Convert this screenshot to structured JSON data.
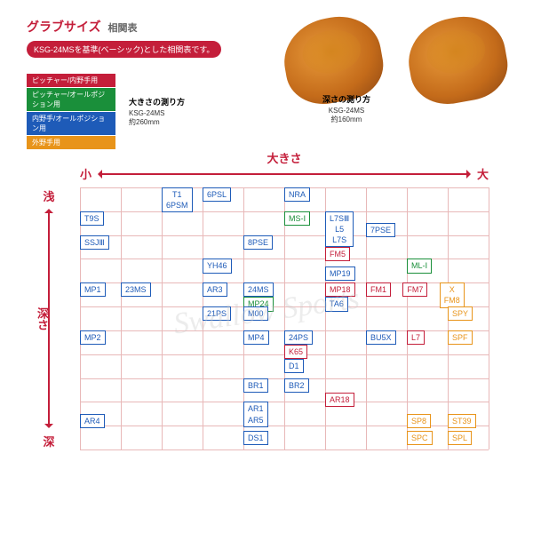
{
  "title_main": "グラブサイズ",
  "title_sub": "相関表",
  "pill": "KSG-24MSを基準(ベーシック)とした相関表です。",
  "legend": [
    {
      "label": "ピッチャー/内野手用",
      "bg": "#c41e3a"
    },
    {
      "label": "ピッチャー/オールポジション用",
      "bg": "#1a8f3a"
    },
    {
      "label": "内野手/オールポジション用",
      "bg": "#1e5bb8"
    },
    {
      "label": "外野手用",
      "bg": "#e8941a"
    }
  ],
  "glove_captions": [
    {
      "title": "大きさの測り方",
      "model": "KSG-24MS",
      "size": "約260mm"
    },
    {
      "title": "深さの測り方",
      "model": "KSG-24MS",
      "size": "約160mm"
    }
  ],
  "axis_x": {
    "left": "小",
    "mid": "大きさ",
    "right": "大"
  },
  "axis_y": {
    "top": "浅",
    "mid": "深さ",
    "bottom": "深"
  },
  "colors": {
    "pitcher": "#c41e3a",
    "pitcher_all": "#1a8f3a",
    "infield": "#1e5bb8",
    "outfield": "#e8941a"
  },
  "grid_cols": 10,
  "grid_rows": 11,
  "cells": [
    {
      "c": 2,
      "r": 0,
      "lines": [
        "T1",
        "6PSM"
      ],
      "cat": "infield"
    },
    {
      "c": 3,
      "r": 0,
      "lines": [
        "6PSL"
      ],
      "cat": "infield"
    },
    {
      "c": 5,
      "r": 0,
      "lines": [
        "NRA"
      ],
      "cat": "infield"
    },
    {
      "c": 0,
      "r": 1,
      "lines": [
        "T9S"
      ],
      "cat": "infield"
    },
    {
      "c": 5,
      "r": 1,
      "lines": [
        "MS-Ⅰ"
      ],
      "cat": "pitcher_all"
    },
    {
      "c": 6,
      "r": 1,
      "lines": [
        "L7SⅢ",
        "L5",
        "L7S"
      ],
      "cat": "infield"
    },
    {
      "c": 7,
      "r": 1.5,
      "lines": [
        "7PSE"
      ],
      "cat": "infield"
    },
    {
      "c": 0,
      "r": 2,
      "lines": [
        "SSJⅢ"
      ],
      "cat": "infield"
    },
    {
      "c": 4,
      "r": 2,
      "lines": [
        "8PSE"
      ],
      "cat": "infield"
    },
    {
      "c": 6,
      "r": 2.5,
      "lines": [
        "FM5"
      ],
      "cat": "pitcher"
    },
    {
      "c": 3,
      "r": 3,
      "lines": [
        "YH46"
      ],
      "cat": "infield"
    },
    {
      "c": 6,
      "r": 3.3,
      "lines": [
        "MP19"
      ],
      "cat": "infield"
    },
    {
      "c": 8,
      "r": 3,
      "lines": [
        "ML-Ⅰ"
      ],
      "cat": "pitcher_all"
    },
    {
      "c": 0,
      "r": 4,
      "lines": [
        "MP1"
      ],
      "cat": "infield"
    },
    {
      "c": 1,
      "r": 4,
      "lines": [
        "23MS"
      ],
      "cat": "infield"
    },
    {
      "c": 3,
      "r": 4,
      "lines": [
        "AR3"
      ],
      "cat": "infield"
    },
    {
      "c": 4,
      "r": 4,
      "lines": [
        "24MS"
      ],
      "cat": "infield"
    },
    {
      "c": 4,
      "r": 4.6,
      "lines": [
        "MP24"
      ],
      "cat": "pitcher_all"
    },
    {
      "c": 6,
      "r": 4,
      "lines": [
        "MP18"
      ],
      "cat": "pitcher"
    },
    {
      "c": 6,
      "r": 4.6,
      "lines": [
        "TA6"
      ],
      "cat": "infield"
    },
    {
      "c": 7,
      "r": 4,
      "lines": [
        "FM1"
      ],
      "cat": "pitcher"
    },
    {
      "c": 7.9,
      "r": 4,
      "lines": [
        "FM7"
      ],
      "cat": "pitcher"
    },
    {
      "c": 8.8,
      "r": 4,
      "lines": [
        "X",
        "FM8"
      ],
      "cat": "outfield"
    },
    {
      "c": 3,
      "r": 5,
      "lines": [
        "21PS"
      ],
      "cat": "infield"
    },
    {
      "c": 4,
      "r": 5,
      "lines": [
        "M00"
      ],
      "cat": "infield"
    },
    {
      "c": 9,
      "r": 5,
      "lines": [
        "SPY"
      ],
      "cat": "outfield"
    },
    {
      "c": 0,
      "r": 6,
      "lines": [
        "MP2"
      ],
      "cat": "infield"
    },
    {
      "c": 4,
      "r": 6,
      "lines": [
        "MP4"
      ],
      "cat": "infield"
    },
    {
      "c": 5,
      "r": 6,
      "lines": [
        "24PS"
      ],
      "cat": "infield"
    },
    {
      "c": 5,
      "r": 6.6,
      "lines": [
        "K65"
      ],
      "cat": "pitcher"
    },
    {
      "c": 5,
      "r": 7.2,
      "lines": [
        "D1"
      ],
      "cat": "infield"
    },
    {
      "c": 7,
      "r": 6,
      "lines": [
        "BU5X"
      ],
      "cat": "infield"
    },
    {
      "c": 8,
      "r": 6,
      "lines": [
        "L7"
      ],
      "cat": "pitcher"
    },
    {
      "c": 9,
      "r": 6,
      "lines": [
        "SPF"
      ],
      "cat": "outfield"
    },
    {
      "c": 4,
      "r": 8,
      "lines": [
        "BR1"
      ],
      "cat": "infield"
    },
    {
      "c": 5,
      "r": 8,
      "lines": [
        "BR2"
      ],
      "cat": "infield"
    },
    {
      "c": 6,
      "r": 8.6,
      "lines": [
        "AR18"
      ],
      "cat": "pitcher"
    },
    {
      "c": 0,
      "r": 9.5,
      "lines": [
        "AR4"
      ],
      "cat": "infield"
    },
    {
      "c": 4,
      "r": 9,
      "lines": [
        "AR1",
        "AR5"
      ],
      "cat": "infield"
    },
    {
      "c": 4,
      "r": 10.2,
      "lines": [
        "DS1"
      ],
      "cat": "infield"
    },
    {
      "c": 8,
      "r": 9.5,
      "lines": [
        "SP8"
      ],
      "cat": "outfield"
    },
    {
      "c": 9,
      "r": 9.5,
      "lines": [
        "ST39"
      ],
      "cat": "outfield"
    },
    {
      "c": 8,
      "r": 10.2,
      "lines": [
        "SPC"
      ],
      "cat": "outfield"
    },
    {
      "c": 9,
      "r": 10.2,
      "lines": [
        "SPL"
      ],
      "cat": "outfield"
    }
  ],
  "watermark": "Swallow Sports"
}
